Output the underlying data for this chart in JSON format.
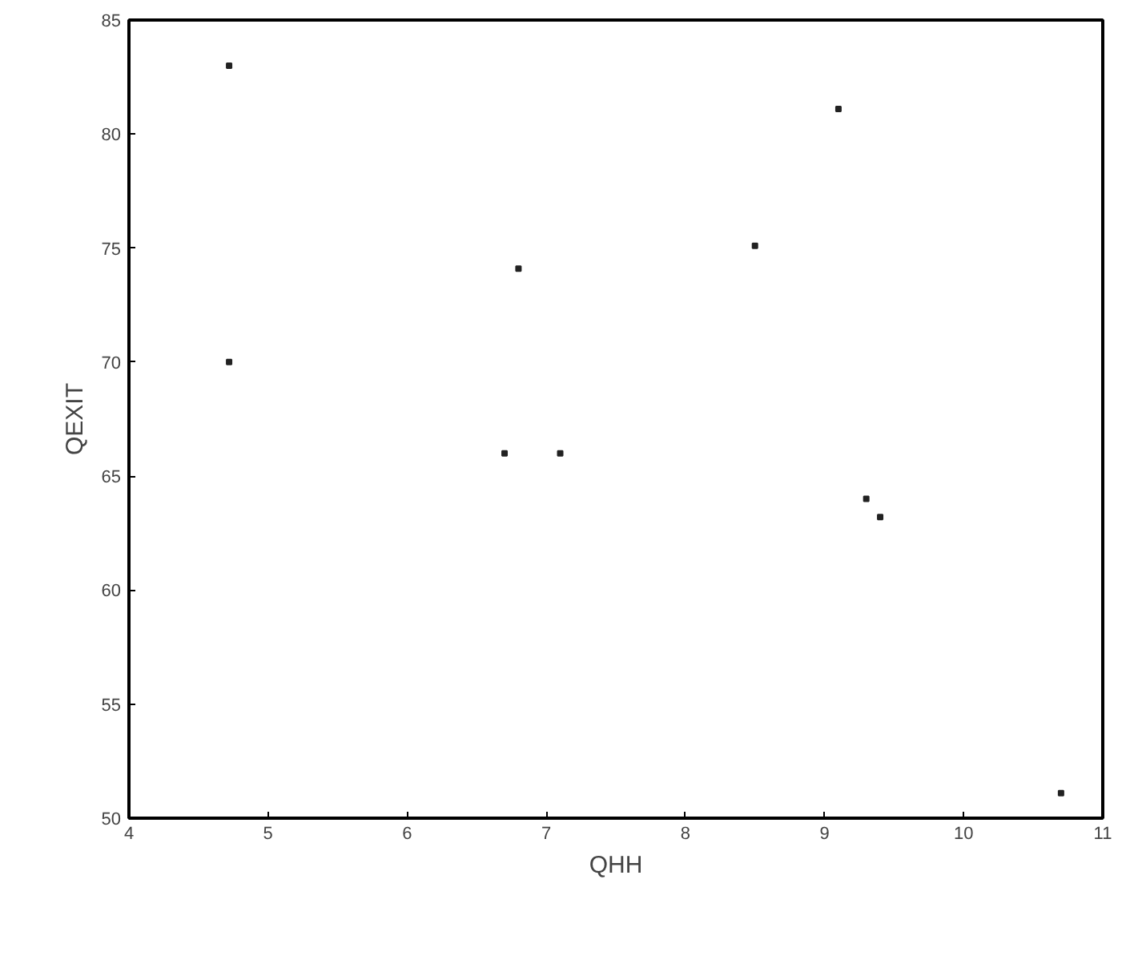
{
  "chart_data": {
    "type": "scatter",
    "xlabel": "QHH",
    "ylabel": "QEXIT",
    "x": [
      4.72,
      9.1,
      6.8,
      8.5,
      4.72,
      6.7,
      7.1,
      9.3,
      9.4,
      10.7
    ],
    "series": [
      {
        "color": "#222222",
        "values": [
          83,
          81.1,
          74.1,
          75.1,
          70,
          66,
          66,
          64,
          63.2,
          51.1
        ]
      }
    ],
    "xlim": [
      4,
      11
    ],
    "ylim": [
      50,
      85
    ],
    "xticks": [
      4,
      5,
      6,
      7,
      8,
      9,
      10,
      11
    ],
    "yticks": [
      50,
      55,
      60,
      65,
      70,
      75,
      80,
      85
    ],
    "marker": "square",
    "grid": false
  }
}
